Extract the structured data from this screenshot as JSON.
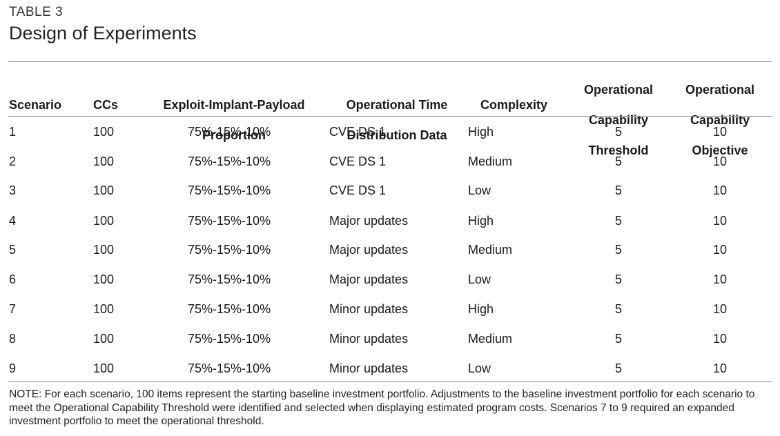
{
  "table_label": "TABLE 3",
  "title": "Design of Experiments",
  "headers": {
    "scenario": "Scenario",
    "ccs": "CCs",
    "proportion": [
      "Exploit-Implant-Payload",
      "Proportion"
    ],
    "distribution": [
      "Operational Time",
      "Distribution Data"
    ],
    "complexity": "Complexity",
    "threshold": [
      "Operational",
      "Capability",
      "Threshold"
    ],
    "objective": [
      "Operational",
      "Capability",
      "Objective"
    ]
  },
  "rows": [
    {
      "scenario": "1",
      "ccs": "100",
      "proportion": "75%-15%-10%",
      "distribution": "CVE DS 1",
      "complexity": "High",
      "threshold": "5",
      "objective": "10"
    },
    {
      "scenario": "2",
      "ccs": "100",
      "proportion": "75%-15%-10%",
      "distribution": "CVE DS 1",
      "complexity": "Medium",
      "threshold": "5",
      "objective": "10"
    },
    {
      "scenario": "3",
      "ccs": "100",
      "proportion": "75%-15%-10%",
      "distribution": "CVE DS 1",
      "complexity": "Low",
      "threshold": "5",
      "objective": "10"
    },
    {
      "scenario": "4",
      "ccs": "100",
      "proportion": "75%-15%-10%",
      "distribution": "Major updates",
      "complexity": "High",
      "threshold": "5",
      "objective": "10"
    },
    {
      "scenario": "5",
      "ccs": "100",
      "proportion": "75%-15%-10%",
      "distribution": "Major updates",
      "complexity": "Medium",
      "threshold": "5",
      "objective": "10"
    },
    {
      "scenario": "6",
      "ccs": "100",
      "proportion": "75%-15%-10%",
      "distribution": "Major updates",
      "complexity": "Low",
      "threshold": "5",
      "objective": "10"
    },
    {
      "scenario": "7",
      "ccs": "100",
      "proportion": "75%-15%-10%",
      "distribution": "Minor updates",
      "complexity": "High",
      "threshold": "5",
      "objective": "10"
    },
    {
      "scenario": "8",
      "ccs": "100",
      "proportion": "75%-15%-10%",
      "distribution": "Minor updates",
      "complexity": "Medium",
      "threshold": "5",
      "objective": "10"
    },
    {
      "scenario": "9",
      "ccs": "100",
      "proportion": "75%-15%-10%",
      "distribution": "Minor updates",
      "complexity": "Low",
      "threshold": "5",
      "objective": "10"
    }
  ],
  "note": "NOTE: For each scenario, 100 items represent the starting baseline investment portfolio. Adjustments to the baseline investment portfolio for each scenario to meet the Operational Capability Threshold were identified and selected when displaying estimated program costs. Scenarios 7 to 9 required an expanded investment portfolio to meet the operational threshold."
}
